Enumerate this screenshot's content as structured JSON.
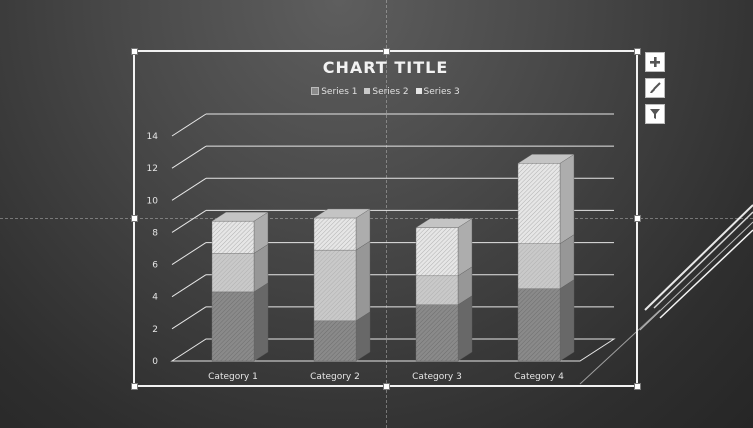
{
  "toolbar": {
    "add_element_icon": "plus-icon",
    "style_icon": "paintbrush-icon",
    "filter_icon": "filter-icon"
  },
  "chart_data": {
    "type": "bar",
    "stacked": true,
    "three_d": true,
    "title": "CHART TITLE",
    "categories": [
      "Category 1",
      "Category 2",
      "Category 3",
      "Category 4"
    ],
    "series": [
      {
        "name": "Series 1",
        "values": [
          4.3,
          2.5,
          3.5,
          4.5
        ]
      },
      {
        "name": "Series 2",
        "values": [
          2.4,
          4.4,
          1.8,
          2.8
        ]
      },
      {
        "name": "Series 3",
        "values": [
          2.0,
          2.0,
          3.0,
          5.0
        ]
      }
    ],
    "y_ticks": [
      "0",
      "2",
      "4",
      "6",
      "8",
      "10",
      "12",
      "14"
    ],
    "ylim": [
      0,
      14
    ],
    "grid": true,
    "legend_position": "top",
    "colors": {
      "background": "#3a3a3a",
      "text": "#f2f2f2",
      "series": [
        "#8a8a8a",
        "#c9c9c9",
        "#e6e6e6"
      ]
    }
  }
}
